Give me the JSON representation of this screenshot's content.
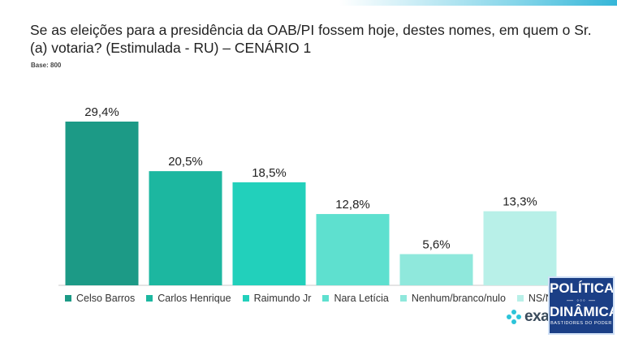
{
  "title": "Se as eleições para a presidência da OAB/PI fossem hoje, destes nomes, em quem o Sr.(a) votaria? (Estimulada - RU) – CENÁRIO 1",
  "base_label": "Base: 800",
  "chart_data": {
    "type": "bar",
    "categories": [
      "Celso Barros",
      "Carlos Henrique",
      "Raimundo Jr",
      "Nara Letícia",
      "Nenhum/branco/nulo",
      "NS/NR"
    ],
    "values": [
      29.4,
      20.5,
      18.5,
      12.8,
      5.6,
      13.3
    ],
    "value_labels": [
      "29,4%",
      "20,5%",
      "18,5%",
      "12,8%",
      "5,6%",
      "13,3%"
    ],
    "colors": [
      "#1c9a86",
      "#1cb7a0",
      "#22d0bb",
      "#5ee0cf",
      "#8fe8dc",
      "#b8f0e8"
    ],
    "ylim": [
      0,
      32
    ],
    "grid": false,
    "legend_position": "bottom"
  },
  "legend": [
    {
      "label": "Celso Barros"
    },
    {
      "label": "Carlos Henrique"
    },
    {
      "label": "Raimundo Jr"
    },
    {
      "label": "Nara Letícia"
    },
    {
      "label": "Nenhum/branco/nulo"
    },
    {
      "label": "NS/NR"
    }
  ],
  "logo_text": "exatta",
  "badge": {
    "line1": "POLÍTICA",
    "line2": "DINÂMICA",
    "tagline": "BASTIDORES DO PODER"
  }
}
